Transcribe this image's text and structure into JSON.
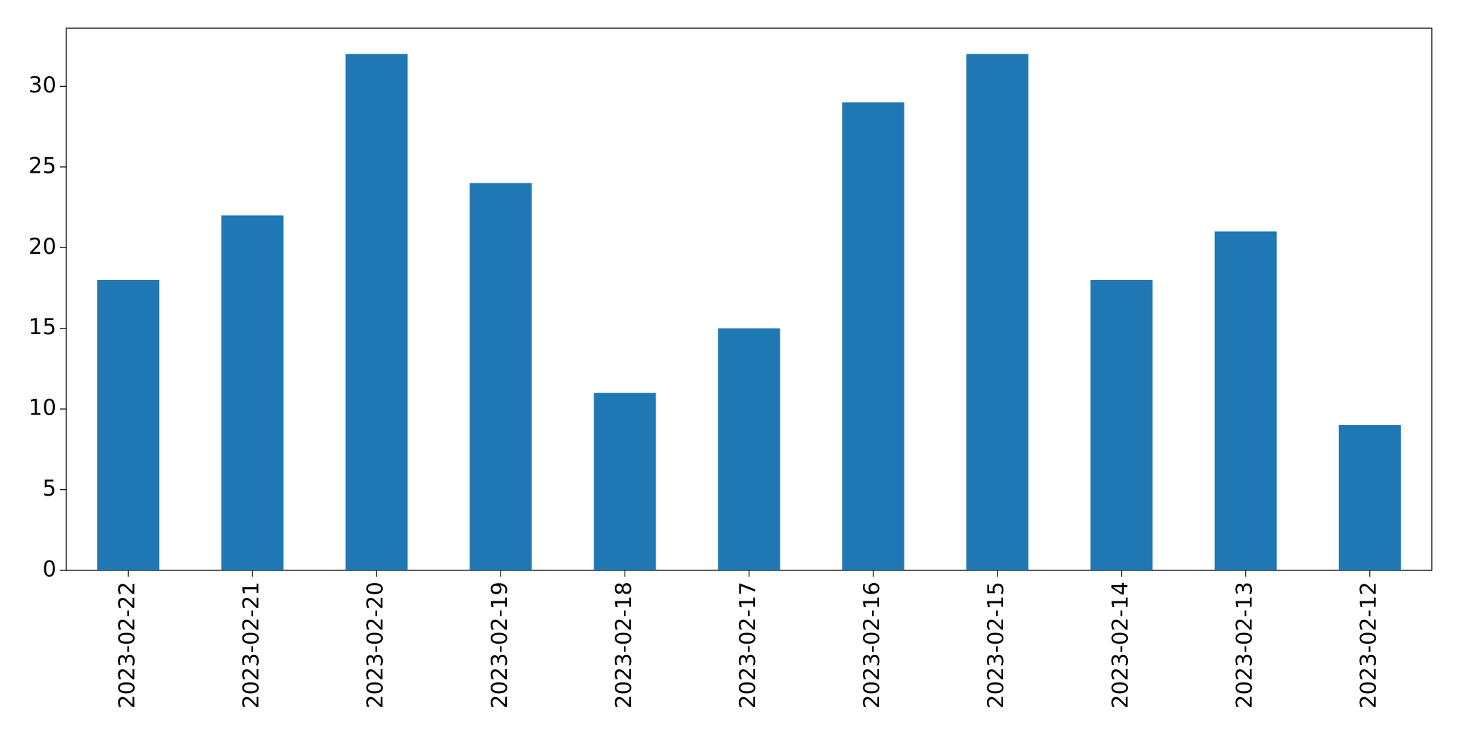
{
  "chart_data": {
    "type": "bar",
    "categories": [
      "2023-02-22",
      "2023-02-21",
      "2023-02-20",
      "2023-02-19",
      "2023-02-18",
      "2023-02-17",
      "2023-02-16",
      "2023-02-15",
      "2023-02-14",
      "2023-02-13",
      "2023-02-12"
    ],
    "values": [
      18,
      22,
      32,
      24,
      11,
      15,
      29,
      32,
      18,
      21,
      9
    ],
    "color": "#1f77b4",
    "ylim": [
      0,
      33.6
    ],
    "yticks": [
      0,
      5,
      10,
      15,
      20,
      25,
      30
    ],
    "grid": false
  }
}
